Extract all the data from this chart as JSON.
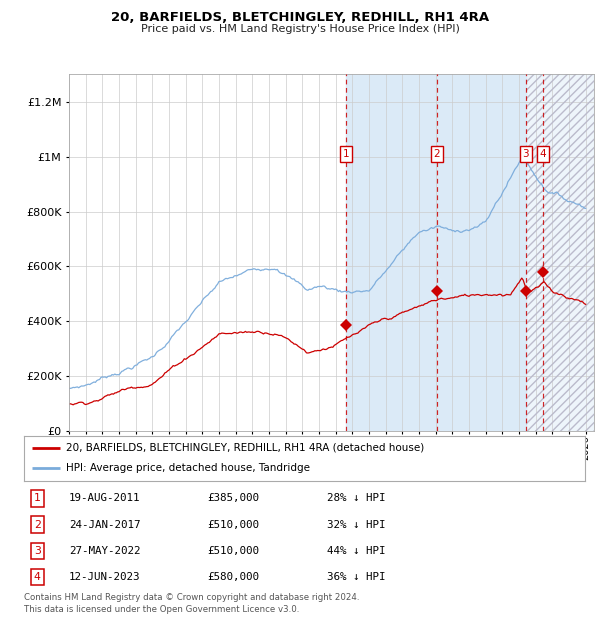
{
  "title": "20, BARFIELDS, BLETCHINGLEY, REDHILL, RH1 4RA",
  "subtitle": "Price paid vs. HM Land Registry's House Price Index (HPI)",
  "legend_line1": "20, BARFIELDS, BLETCHINGLEY, REDHILL, RH1 4RA (detached house)",
  "legend_line2": "HPI: Average price, detached house, Tandridge",
  "footer1": "Contains HM Land Registry data © Crown copyright and database right 2024.",
  "footer2": "This data is licensed under the Open Government Licence v3.0.",
  "hpi_color": "#7aabdb",
  "price_color": "#cc0000",
  "background_color": "#ffffff",
  "grid_color": "#cccccc",
  "shaded_color": "#dbeaf7",
  "ylim": [
    0,
    1300000
  ],
  "yticks": [
    0,
    200000,
    400000,
    600000,
    800000,
    1000000,
    1200000
  ],
  "xlim_start": 1995.0,
  "xlim_end": 2026.5,
  "transactions": [
    {
      "num": 1,
      "date": "19-AUG-2011",
      "price": 385000,
      "pct": "28%",
      "x": 2011.63
    },
    {
      "num": 2,
      "date": "24-JAN-2017",
      "price": 510000,
      "pct": "32%",
      "x": 2017.07
    },
    {
      "num": 3,
      "date": "27-MAY-2022",
      "price": 510000,
      "pct": "44%",
      "x": 2022.41
    },
    {
      "num": 4,
      "date": "12-JUN-2023",
      "price": 580000,
      "pct": "36%",
      "x": 2023.45
    }
  ],
  "table_rows": [
    [
      "1",
      "19-AUG-2011",
      "£385,000",
      "28% ↓ HPI"
    ],
    [
      "2",
      "24-JAN-2017",
      "£510,000",
      "32% ↓ HPI"
    ],
    [
      "3",
      "27-MAY-2022",
      "£510,000",
      "44% ↓ HPI"
    ],
    [
      "4",
      "12-JUN-2023",
      "£580,000",
      "36% ↓ HPI"
    ]
  ]
}
